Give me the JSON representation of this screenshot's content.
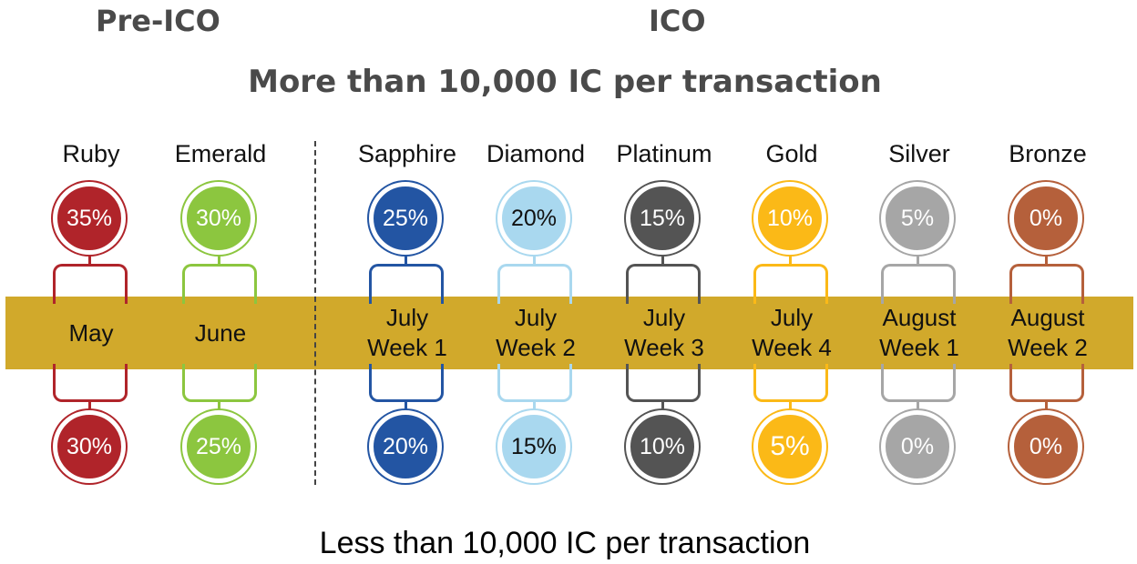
{
  "sections": {
    "pre_ico": "Pre-ICO",
    "ico": "ICO"
  },
  "top_caption": "More than 10,000 IC per transaction",
  "bottom_caption": "Less than 10,000 IC per transaction",
  "tiers": [
    {
      "name": "Ruby",
      "top_pct": "35%",
      "bottom_pct": "30%",
      "period_line1": "May",
      "period_line2": "",
      "color": "#b0242a"
    },
    {
      "name": "Emerald",
      "top_pct": "30%",
      "bottom_pct": "25%",
      "period_line1": "June",
      "period_line2": "",
      "color": "#8cc63f"
    },
    {
      "name": "Sapphire",
      "top_pct": "25%",
      "bottom_pct": "20%",
      "period_line1": "July",
      "period_line2": "Week 1",
      "color": "#2355a3"
    },
    {
      "name": "Diamond",
      "top_pct": "20%",
      "bottom_pct": "15%",
      "period_line1": "July",
      "period_line2": "Week 2",
      "color": "#a9d8ef"
    },
    {
      "name": "Platinum",
      "top_pct": "15%",
      "bottom_pct": "10%",
      "period_line1": "July",
      "period_line2": "Week 3",
      "color": "#545454"
    },
    {
      "name": "Gold",
      "top_pct": "10%",
      "bottom_pct": "5%",
      "period_line1": "July",
      "period_line2": "Week 4",
      "color": "#fbb917"
    },
    {
      "name": "Silver",
      "top_pct": "5%",
      "bottom_pct": "0%",
      "period_line1": "August",
      "period_line2": "Week 1",
      "color": "#a6a6a6"
    },
    {
      "name": "Bronze",
      "top_pct": "0%",
      "bottom_pct": "0%",
      "period_line1": "August",
      "period_line2": "Week 2",
      "color": "#b5603b"
    }
  ],
  "band_color": "#d1a92b"
}
